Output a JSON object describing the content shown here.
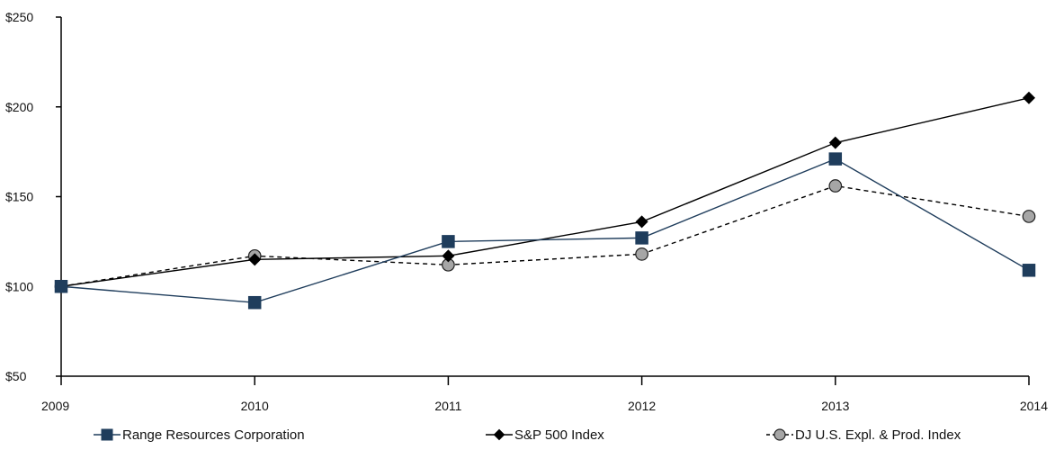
{
  "chart_data": {
    "type": "line",
    "title": "",
    "xlabel": "",
    "ylabel": "",
    "categories": [
      "2009",
      "2010",
      "2011",
      "2012",
      "2013",
      "2014"
    ],
    "ylim": [
      50,
      250
    ],
    "y_ticks": [
      50,
      100,
      150,
      200,
      250
    ],
    "y_tick_labels": [
      "$50",
      "$100",
      "$150",
      "$200",
      "$250"
    ],
    "grid": false,
    "legend_position": "bottom",
    "series": [
      {
        "name": "Range Resources Corporation",
        "values": [
          100,
          91,
          125,
          127,
          171,
          109
        ],
        "color": "#1f3d5c",
        "marker": "square",
        "line_style": "solid"
      },
      {
        "name": "S&P 500 Index",
        "values": [
          100,
          115,
          117,
          136,
          180,
          205
        ],
        "color": "#000000",
        "marker": "diamond",
        "line_style": "solid"
      },
      {
        "name": "DJ U.S. Expl. & Prod. Index",
        "values": [
          100,
          117,
          112,
          118,
          156,
          139
        ],
        "color": "#000000",
        "marker_fill": "#a6a6a6",
        "marker": "circle",
        "line_style": "dashed"
      }
    ]
  }
}
